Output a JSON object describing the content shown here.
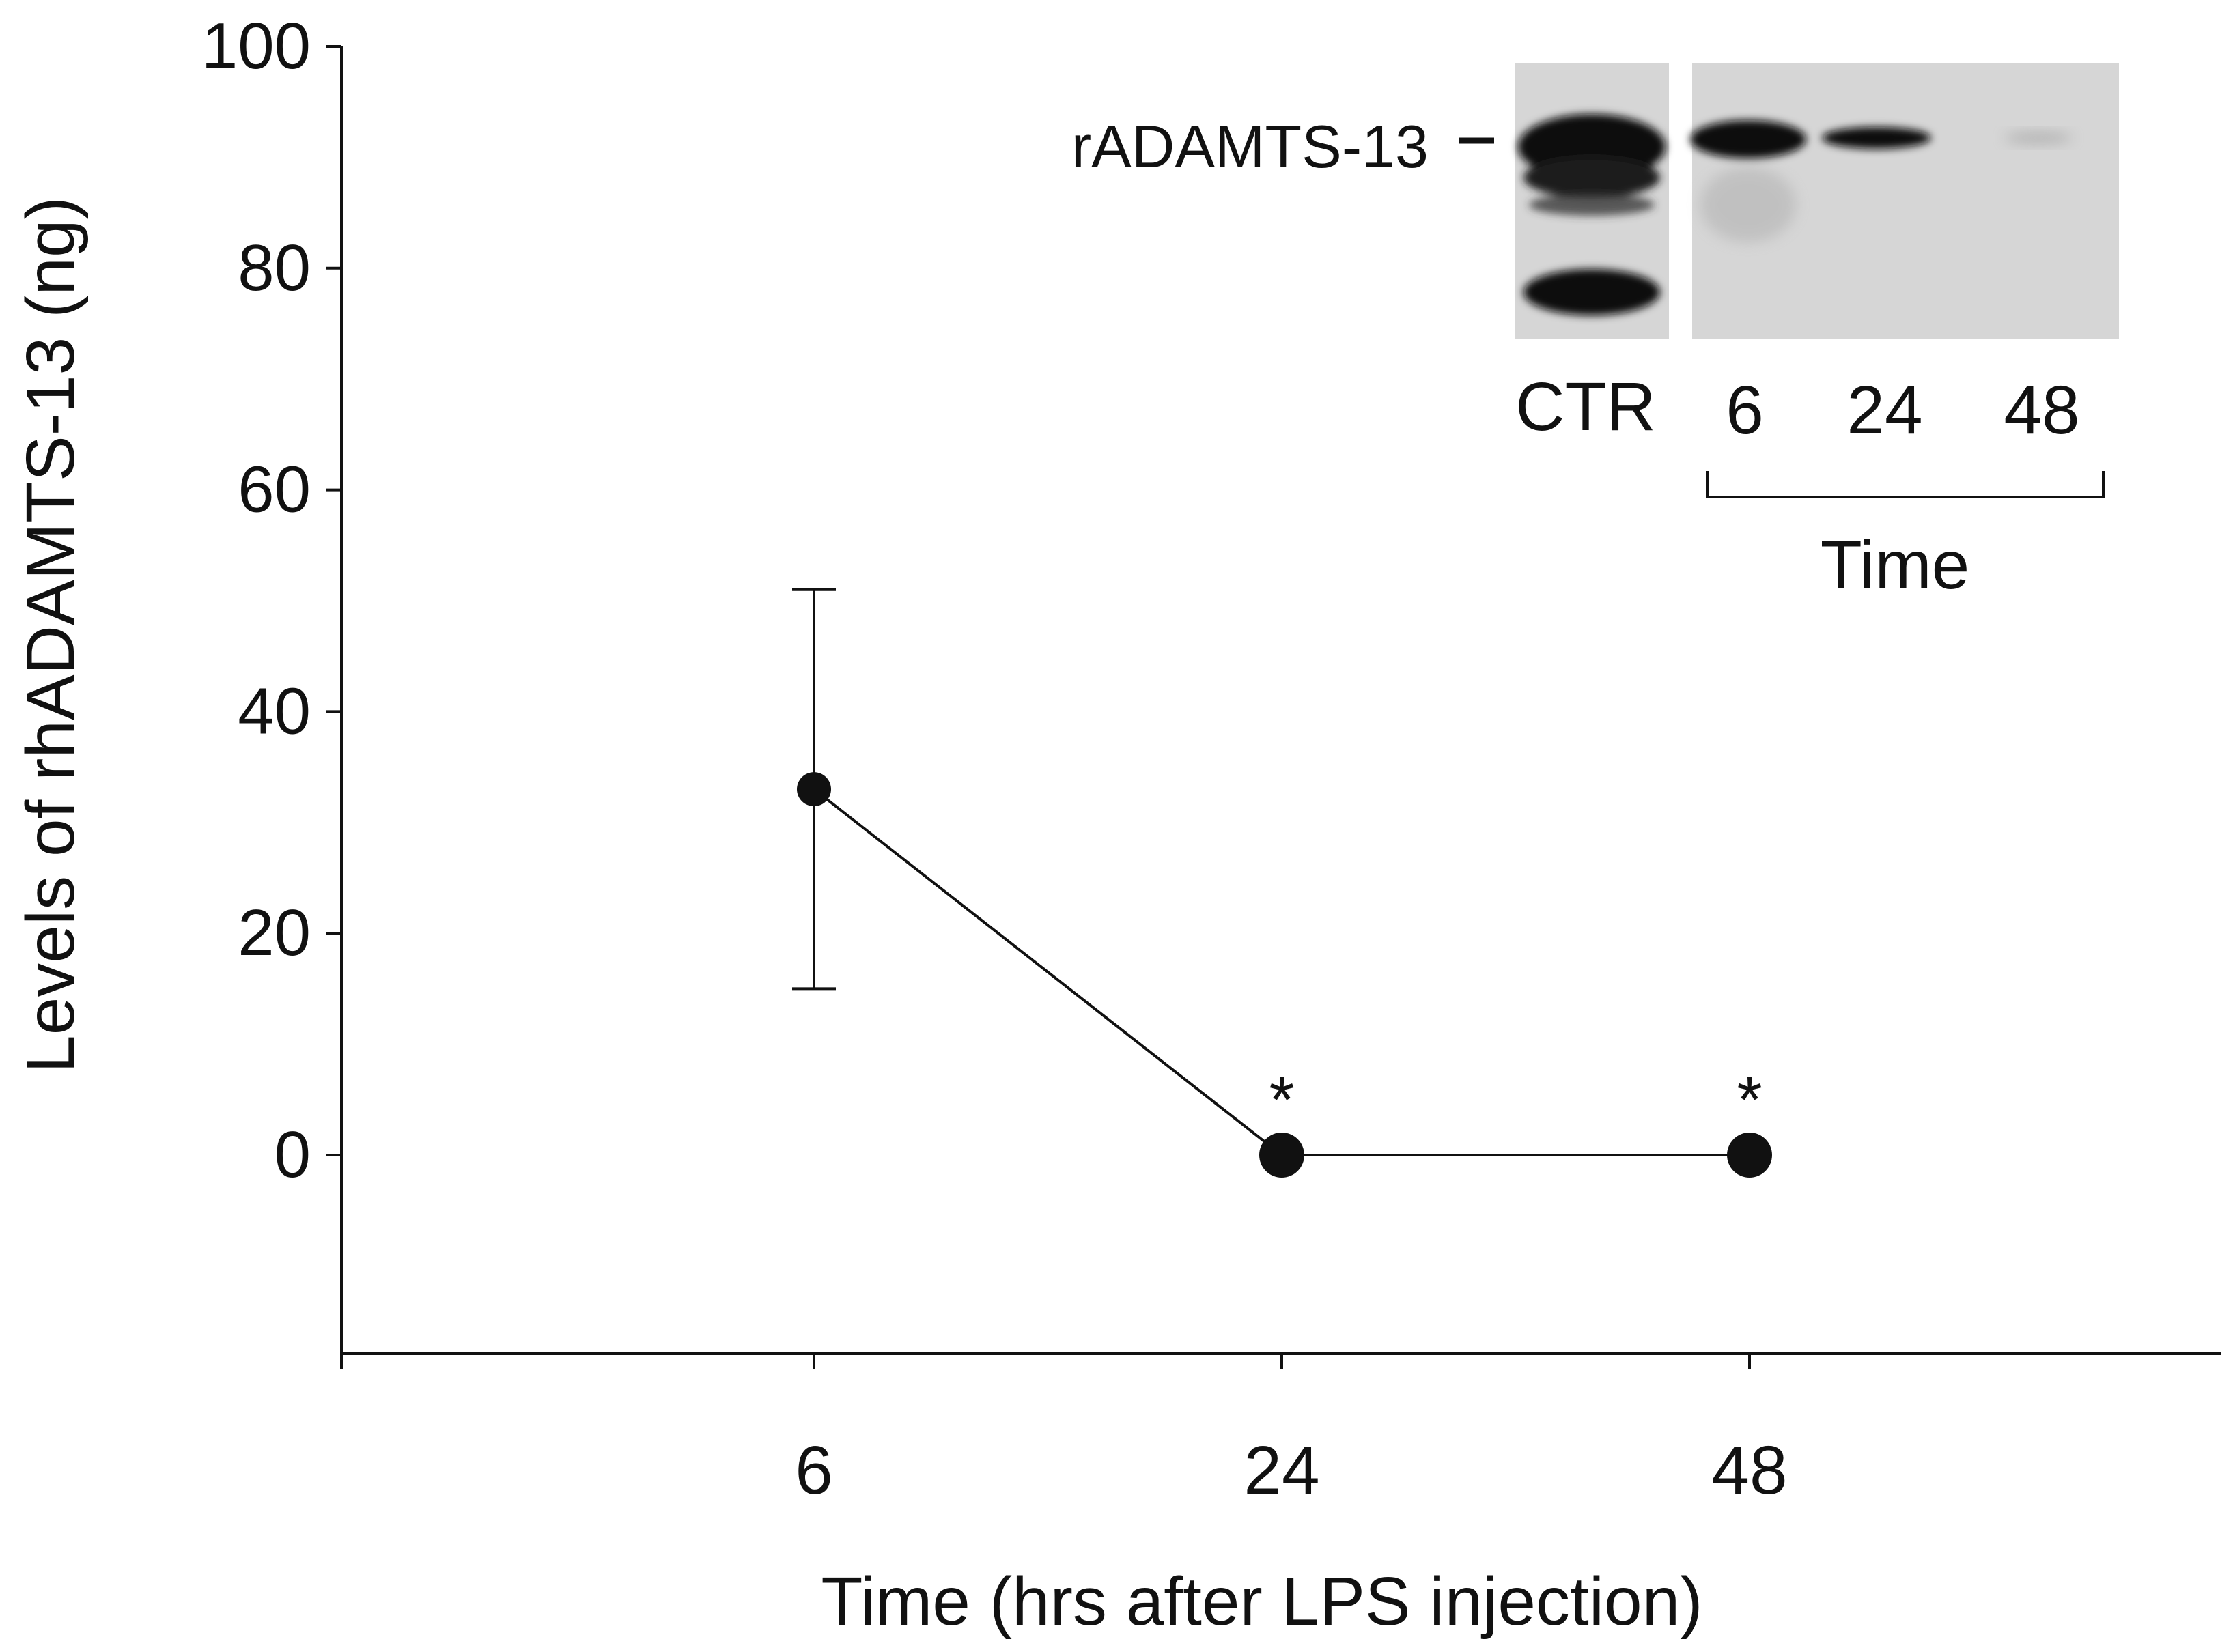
{
  "chart_data": {
    "type": "line",
    "xlabel": "Time (hrs after LPS injection)",
    "ylabel": "Levels of rhADAMTS-13 (ng)",
    "x_tick_labels": [
      "6",
      "24",
      "48"
    ],
    "y_ticks": [
      0,
      20,
      40,
      60,
      80,
      100
    ],
    "ylim": [
      -18,
      100
    ],
    "grid": false,
    "series": [
      {
        "x": [
          "6",
          "24",
          "48"
        ],
        "values": [
          33,
          0,
          0
        ],
        "error_upper": [
          51,
          null,
          null
        ],
        "error_lower": [
          15,
          null,
          null
        ],
        "annotations": [
          "",
          "*",
          "*"
        ]
      }
    ],
    "inset": {
      "type": "western-blot",
      "band_label": "rADAMTS-13",
      "lane_labels": [
        "CTR",
        "6",
        "24",
        "48"
      ],
      "group_label": "Time"
    }
  },
  "colors": {
    "ink": "#111111",
    "blot_background": "#d6d6d6",
    "band": "#0c0c0c"
  }
}
